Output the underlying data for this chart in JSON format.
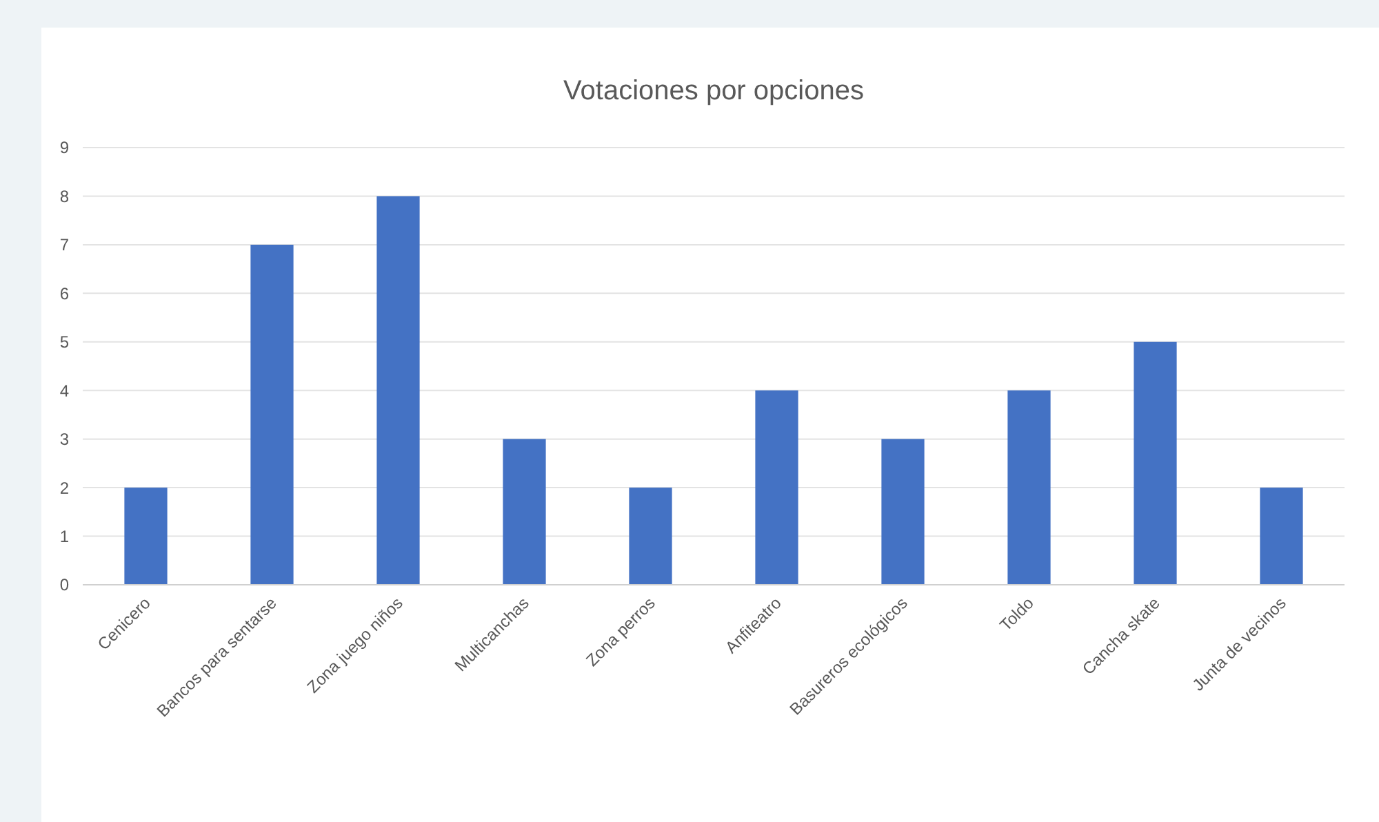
{
  "chart_data": {
    "type": "bar",
    "title": "Votaciones por opciones",
    "categories": [
      "Cenicero",
      "Bancos para sentarse",
      "Zona juego niños",
      "Multicanchas",
      "Zona perros",
      "Anfiteatro",
      "Basureros ecológicos",
      "Toldo",
      "Cancha skate",
      "Junta de vecinos"
    ],
    "values": [
      2,
      7,
      8,
      3,
      2,
      4,
      3,
      4,
      5,
      2
    ],
    "color": "#4472c4",
    "ylim": [
      0,
      9
    ],
    "yticks": [
      0,
      1,
      2,
      3,
      4,
      5,
      6,
      7,
      8,
      9
    ],
    "grid": "y"
  }
}
